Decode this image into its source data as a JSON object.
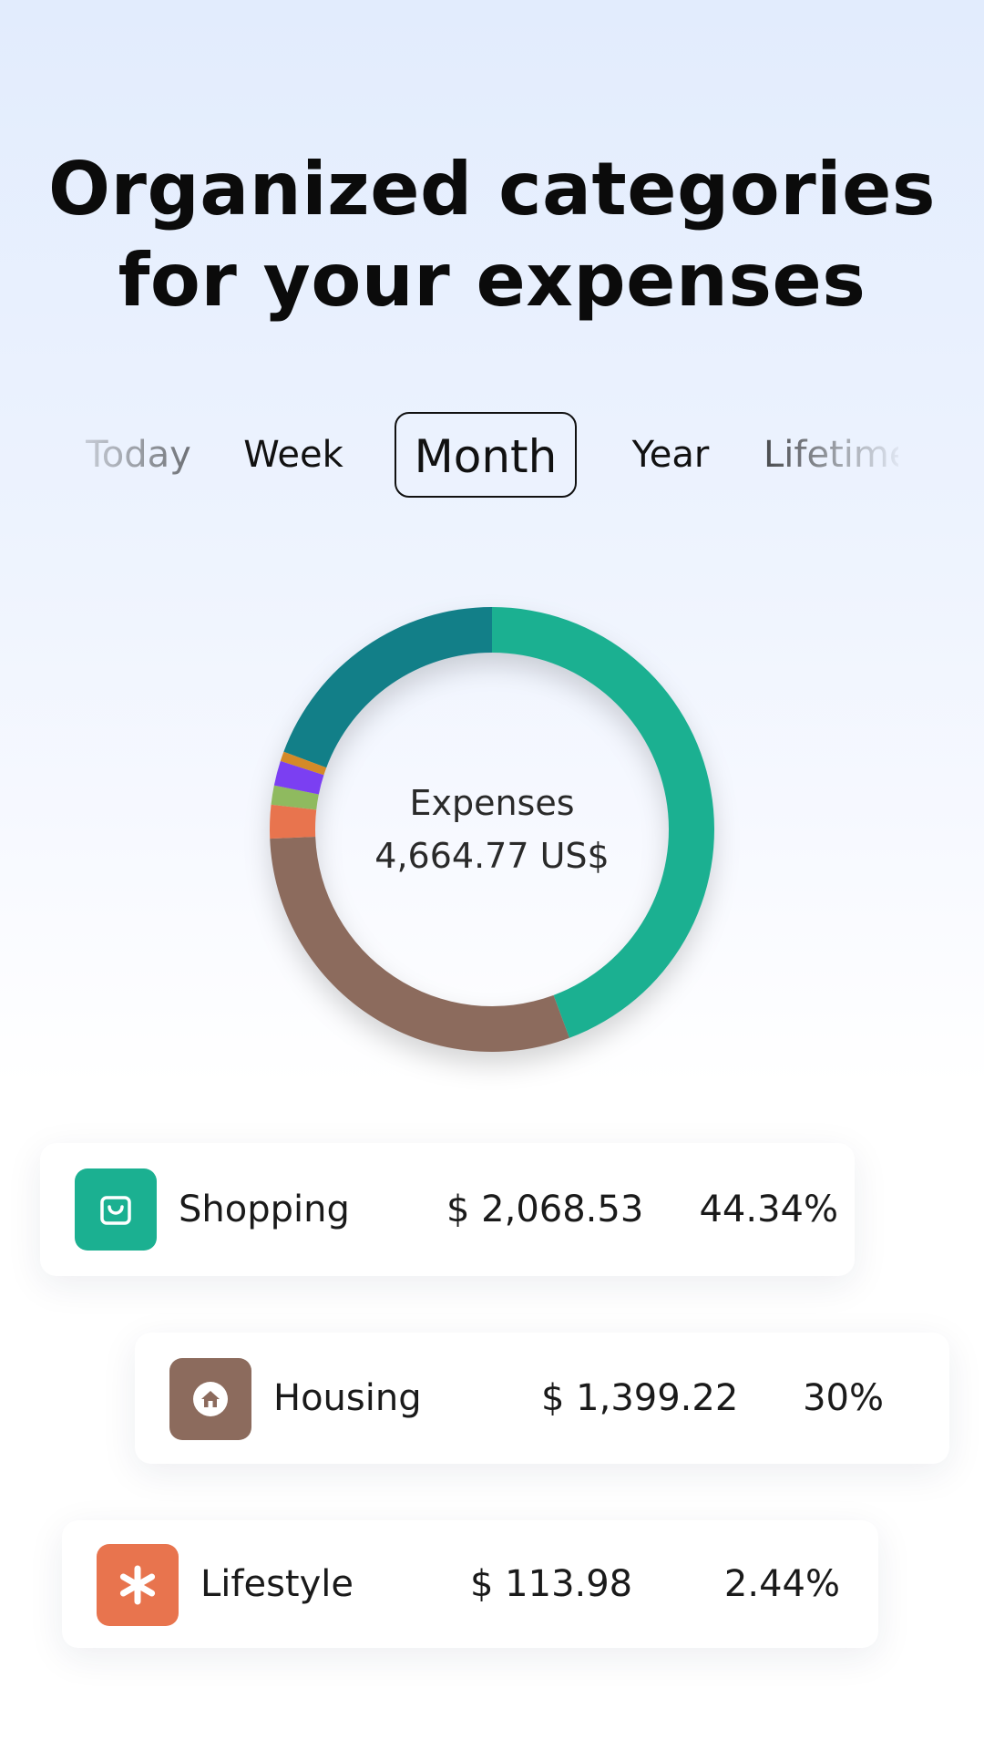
{
  "headline": {
    "line1": "Organized categories",
    "line2": "for your expenses"
  },
  "tabs": [
    {
      "label": "Today",
      "active": false
    },
    {
      "label": "Week",
      "active": false
    },
    {
      "label": "Month",
      "active": true
    },
    {
      "label": "Year",
      "active": false
    },
    {
      "label": "Lifetime",
      "active": false
    }
  ],
  "summary": {
    "label": "Expenses",
    "total": "4,664.77 US$"
  },
  "chart_data": {
    "type": "pie",
    "categories": [
      "Shopping",
      "Housing",
      "Lifestyle",
      "",
      "",
      ""
    ],
    "values": [
      44.34,
      30,
      2.44,
      1.4,
      1.8,
      0.7
    ],
    "colors": [
      "#1bb091",
      "#8c6b5d",
      "#e8744e",
      "#8fba5f",
      "#7b3ff2",
      "#d48a28"
    ],
    "remaining_color": "#127f88",
    "donut": true
  },
  "categories": [
    {
      "name": "Shopping",
      "amount": "$ 2,068.53",
      "percent": "44.34%",
      "color": "#1bb091",
      "icon": "shopping-bag-icon"
    },
    {
      "name": "Housing",
      "amount": "$ 1,399.22",
      "percent": "30%",
      "color": "#8c6b5d",
      "icon": "house-icon"
    },
    {
      "name": "Lifestyle",
      "amount": "$ 113.98",
      "percent": "2.44%",
      "color": "#e8744e",
      "icon": "asterisk-icon"
    }
  ]
}
